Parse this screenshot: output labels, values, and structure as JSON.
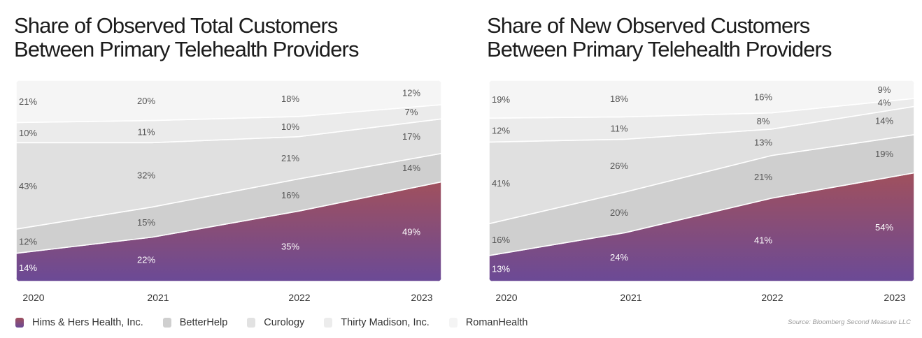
{
  "chart_data": [
    {
      "type": "area",
      "stacked": true,
      "normalized": true,
      "title_lines": [
        "Share of Observed Total Customers",
        "Between Primary Telehealth Providers"
      ],
      "x": [
        "2020",
        "2021",
        "2022",
        "2023"
      ],
      "ylim": [
        0,
        100
      ],
      "series": [
        {
          "name": "Hims & Hers Health, Inc.",
          "values": [
            14,
            22,
            35,
            49
          ],
          "labels": [
            "14%",
            "22%",
            "35%",
            "49%"
          ]
        },
        {
          "name": "BetterHelp",
          "values": [
            12,
            15,
            16,
            14
          ],
          "labels": [
            "12%",
            "15%",
            "16%",
            "14%"
          ]
        },
        {
          "name": "Curology",
          "values": [
            43,
            32,
            21,
            17
          ],
          "labels": [
            "43%",
            "32%",
            "21%",
            "17%"
          ]
        },
        {
          "name": "Thirty Madison, Inc.",
          "values": [
            10,
            11,
            10,
            7
          ],
          "labels": [
            "10%",
            "11%",
            "10%",
            "7%"
          ]
        },
        {
          "name": "RomanHealth",
          "values": [
            21,
            20,
            18,
            12
          ],
          "labels": [
            "21%",
            "20%",
            "18%",
            "12%"
          ]
        }
      ]
    },
    {
      "type": "area",
      "stacked": true,
      "normalized": true,
      "title_lines": [
        "Share of New Observed Customers",
        "Between Primary Telehealth Providers"
      ],
      "x": [
        "2020",
        "2021",
        "2022",
        "2023"
      ],
      "ylim": [
        0,
        100
      ],
      "series": [
        {
          "name": "Hims & Hers Health, Inc.",
          "values": [
            13,
            24,
            41,
            54
          ],
          "labels": [
            "13%",
            "24%",
            "41%",
            "54%"
          ]
        },
        {
          "name": "BetterHelp",
          "values": [
            16,
            20,
            21,
            19
          ],
          "labels": [
            "16%",
            "20%",
            "21%",
            "19%"
          ]
        },
        {
          "name": "Curology",
          "values": [
            41,
            26,
            13,
            14
          ],
          "labels": [
            "41%",
            "26%",
            "13%",
            "14%"
          ]
        },
        {
          "name": "Thirty Madison, Inc.",
          "values": [
            12,
            11,
            8,
            4
          ],
          "labels": [
            "12%",
            "11%",
            "8%",
            "4%"
          ]
        },
        {
          "name": "RomanHealth",
          "values": [
            19,
            18,
            16,
            9
          ],
          "labels": [
            "19%",
            "18%",
            "16%",
            "9%"
          ]
        }
      ]
    }
  ],
  "legend": [
    {
      "label": "Hims & Hers Health, Inc.",
      "color": "#8a4e7d"
    },
    {
      "label": "BetterHelp",
      "color": "#cfcfcf"
    },
    {
      "label": "Curology",
      "color": "#e2e2e2"
    },
    {
      "label": "Thirty Madison, Inc.",
      "color": "#ececec"
    },
    {
      "label": "RomanHealth",
      "color": "#f4f4f4"
    }
  ],
  "colors": {
    "hims_top": "#a0505d",
    "hims_bottom": "#6b4a96",
    "betterhelp": "#cfcfcf",
    "curology": "#e0e0e0",
    "thirty_madison": "#ebebeb",
    "roman": "#f5f5f5"
  },
  "source": "Source: Bloomberg Second Measure LLC"
}
